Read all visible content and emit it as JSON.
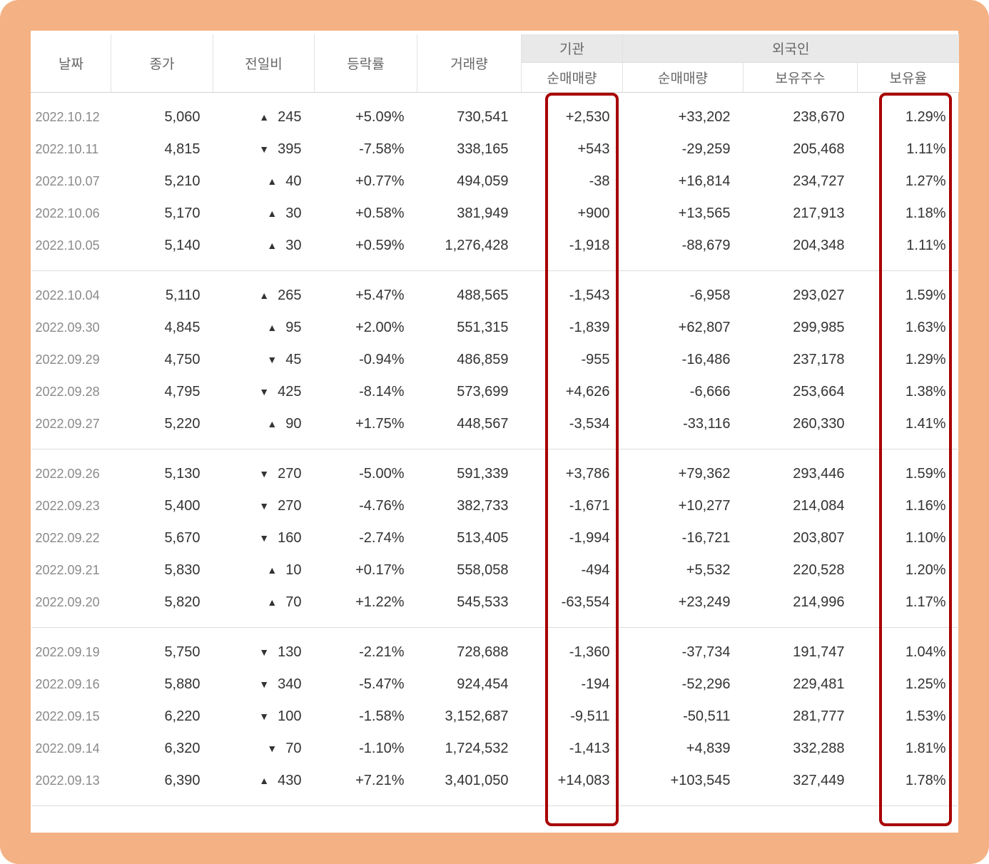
{
  "headers": {
    "date": "날짜",
    "close": "종가",
    "change": "전일비",
    "rate": "등락률",
    "volume": "거래량",
    "institution": "기관",
    "institution_net": "순매매량",
    "foreign": "외국인",
    "foreign_net": "순매매량",
    "foreign_holdings": "보유주수",
    "foreign_ratio": "보유율"
  },
  "arrow_up": "▲",
  "arrow_down": "▼",
  "rows": [
    {
      "date": "2022.10.12",
      "close": "5,060",
      "dir": "up",
      "change": "245",
      "rate": "+5.09%",
      "volume": "730,541",
      "inst": "+2,530",
      "fnet": "+33,202",
      "hold": "238,670",
      "ratio": "1.29%"
    },
    {
      "date": "2022.10.11",
      "close": "4,815",
      "dir": "down",
      "change": "395",
      "rate": "-7.58%",
      "volume": "338,165",
      "inst": "+543",
      "fnet": "-29,259",
      "hold": "205,468",
      "ratio": "1.11%"
    },
    {
      "date": "2022.10.07",
      "close": "5,210",
      "dir": "up",
      "change": "40",
      "rate": "+0.77%",
      "volume": "494,059",
      "inst": "-38",
      "fnet": "+16,814",
      "hold": "234,727",
      "ratio": "1.27%"
    },
    {
      "date": "2022.10.06",
      "close": "5,170",
      "dir": "up",
      "change": "30",
      "rate": "+0.58%",
      "volume": "381,949",
      "inst": "+900",
      "fnet": "+13,565",
      "hold": "217,913",
      "ratio": "1.18%"
    },
    {
      "date": "2022.10.05",
      "close": "5,140",
      "dir": "up",
      "change": "30",
      "rate": "+0.59%",
      "volume": "1,276,428",
      "inst": "-1,918",
      "fnet": "-88,679",
      "hold": "204,348",
      "ratio": "1.11%"
    },
    {
      "date": "2022.10.04",
      "close": "5,110",
      "dir": "up",
      "change": "265",
      "rate": "+5.47%",
      "volume": "488,565",
      "inst": "-1,543",
      "fnet": "-6,958",
      "hold": "293,027",
      "ratio": "1.59%"
    },
    {
      "date": "2022.09.30",
      "close": "4,845",
      "dir": "up",
      "change": "95",
      "rate": "+2.00%",
      "volume": "551,315",
      "inst": "-1,839",
      "fnet": "+62,807",
      "hold": "299,985",
      "ratio": "1.63%"
    },
    {
      "date": "2022.09.29",
      "close": "4,750",
      "dir": "down",
      "change": "45",
      "rate": "-0.94%",
      "volume": "486,859",
      "inst": "-955",
      "fnet": "-16,486",
      "hold": "237,178",
      "ratio": "1.29%"
    },
    {
      "date": "2022.09.28",
      "close": "4,795",
      "dir": "down",
      "change": "425",
      "rate": "-8.14%",
      "volume": "573,699",
      "inst": "+4,626",
      "fnet": "-6,666",
      "hold": "253,664",
      "ratio": "1.38%"
    },
    {
      "date": "2022.09.27",
      "close": "5,220",
      "dir": "up",
      "change": "90",
      "rate": "+1.75%",
      "volume": "448,567",
      "inst": "-3,534",
      "fnet": "-33,116",
      "hold": "260,330",
      "ratio": "1.41%"
    },
    {
      "date": "2022.09.26",
      "close": "5,130",
      "dir": "down",
      "change": "270",
      "rate": "-5.00%",
      "volume": "591,339",
      "inst": "+3,786",
      "fnet": "+79,362",
      "hold": "293,446",
      "ratio": "1.59%"
    },
    {
      "date": "2022.09.23",
      "close": "5,400",
      "dir": "down",
      "change": "270",
      "rate": "-4.76%",
      "volume": "382,733",
      "inst": "-1,671",
      "fnet": "+10,277",
      "hold": "214,084",
      "ratio": "1.16%"
    },
    {
      "date": "2022.09.22",
      "close": "5,670",
      "dir": "down",
      "change": "160",
      "rate": "-2.74%",
      "volume": "513,405",
      "inst": "-1,994",
      "fnet": "-16,721",
      "hold": "203,807",
      "ratio": "1.10%"
    },
    {
      "date": "2022.09.21",
      "close": "5,830",
      "dir": "up",
      "change": "10",
      "rate": "+0.17%",
      "volume": "558,058",
      "inst": "-494",
      "fnet": "+5,532",
      "hold": "220,528",
      "ratio": "1.20%"
    },
    {
      "date": "2022.09.20",
      "close": "5,820",
      "dir": "up",
      "change": "70",
      "rate": "+1.22%",
      "volume": "545,533",
      "inst": "-63,554",
      "fnet": "+23,249",
      "hold": "214,996",
      "ratio": "1.17%"
    },
    {
      "date": "2022.09.19",
      "close": "5,750",
      "dir": "down",
      "change": "130",
      "rate": "-2.21%",
      "volume": "728,688",
      "inst": "-1,360",
      "fnet": "-37,734",
      "hold": "191,747",
      "ratio": "1.04%"
    },
    {
      "date": "2022.09.16",
      "close": "5,880",
      "dir": "down",
      "change": "340",
      "rate": "-5.47%",
      "volume": "924,454",
      "inst": "-194",
      "fnet": "-52,296",
      "hold": "229,481",
      "ratio": "1.25%"
    },
    {
      "date": "2022.09.15",
      "close": "6,220",
      "dir": "down",
      "change": "100",
      "rate": "-1.58%",
      "volume": "3,152,687",
      "inst": "-9,511",
      "fnet": "-50,511",
      "hold": "281,777",
      "ratio": "1.53%"
    },
    {
      "date": "2022.09.14",
      "close": "6,320",
      "dir": "down",
      "change": "70",
      "rate": "-1.10%",
      "volume": "1,724,532",
      "inst": "-1,413",
      "fnet": "+4,839",
      "hold": "332,288",
      "ratio": "1.81%"
    },
    {
      "date": "2022.09.13",
      "close": "6,390",
      "dir": "up",
      "change": "430",
      "rate": "+7.21%",
      "volume": "3,401,050",
      "inst": "+14,083",
      "fnet": "+103,545",
      "hold": "327,449",
      "ratio": "1.78%"
    }
  ],
  "colors": {
    "up": "#e0221b",
    "down": "#1565d8",
    "highlight": "#a80000",
    "frame": "#f4b183"
  }
}
